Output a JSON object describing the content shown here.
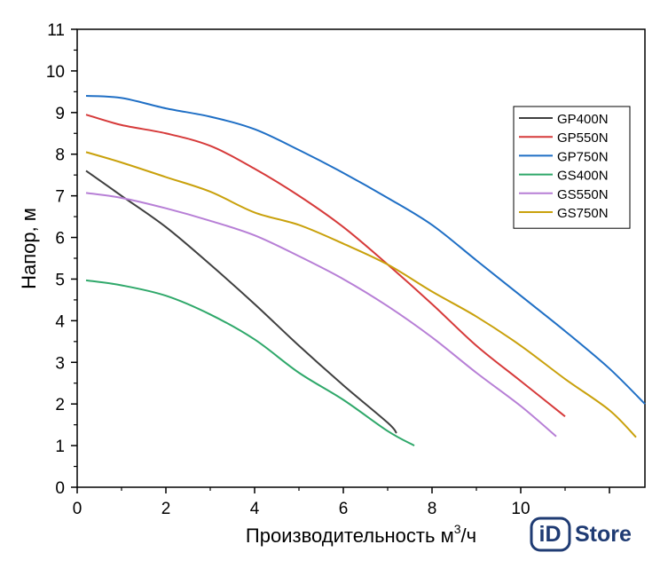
{
  "chart_data": {
    "type": "line",
    "title": "",
    "xlabel": "Производительность м³/ч",
    "xlabel_main": "Производительность м",
    "xlabel_sup": "3",
    "xlabel_tail": "/ч",
    "ylabel": "Напор, м",
    "xlim": [
      0,
      12.8
    ],
    "ylim": [
      0,
      11
    ],
    "xticks": [
      "0",
      "2",
      "4",
      "6",
      "8",
      "10"
    ],
    "yticks": [
      "0",
      "1",
      "2",
      "3",
      "4",
      "5",
      "6",
      "7",
      "8",
      "9",
      "10",
      "11"
    ],
    "grid": false,
    "legend": "top-right",
    "series": [
      {
        "name": "GP400N",
        "color": "#3f3f3f",
        "x": [
          0.2,
          1,
          2,
          3,
          4,
          5,
          6,
          7,
          7.2
        ],
        "y": [
          7.6,
          7.0,
          6.25,
          5.35,
          4.4,
          3.4,
          2.45,
          1.55,
          1.3
        ]
      },
      {
        "name": "GP550N",
        "color": "#d63a3a",
        "x": [
          0.2,
          1,
          2,
          3,
          4,
          5,
          6,
          7,
          8,
          9,
          10,
          11
        ],
        "y": [
          8.95,
          8.7,
          8.5,
          8.2,
          7.65,
          7.0,
          6.25,
          5.35,
          4.4,
          3.4,
          2.55,
          1.7
        ]
      },
      {
        "name": "GP750N",
        "color": "#1f6fc5",
        "x": [
          0.2,
          1,
          2,
          3,
          4,
          5,
          6,
          7,
          8,
          9,
          10,
          11,
          12,
          12.8
        ],
        "y": [
          9.4,
          9.35,
          9.1,
          8.9,
          8.6,
          8.1,
          7.55,
          6.95,
          6.3,
          5.45,
          4.6,
          3.75,
          2.85,
          2.0
        ]
      },
      {
        "name": "GS400N",
        "color": "#2fa86a",
        "x": [
          0.2,
          1,
          2,
          3,
          4,
          5,
          6,
          7,
          7.6
        ],
        "y": [
          4.97,
          4.85,
          4.6,
          4.15,
          3.55,
          2.75,
          2.1,
          1.35,
          1.0
        ]
      },
      {
        "name": "GS550N",
        "color": "#b77fd6",
        "x": [
          0.2,
          1,
          2,
          3,
          4,
          5,
          6,
          7,
          8,
          9,
          10,
          10.8
        ],
        "y": [
          7.07,
          6.95,
          6.7,
          6.4,
          6.05,
          5.55,
          5.0,
          4.35,
          3.6,
          2.75,
          1.95,
          1.22
        ]
      },
      {
        "name": "GS750N",
        "color": "#c9a10c",
        "x": [
          0.2,
          1,
          2,
          3,
          4,
          5,
          6,
          7,
          8,
          9,
          10,
          11,
          12,
          12.6
        ],
        "y": [
          8.05,
          7.8,
          7.45,
          7.1,
          6.6,
          6.3,
          5.85,
          5.35,
          4.7,
          4.1,
          3.4,
          2.6,
          1.85,
          1.2
        ]
      }
    ]
  },
  "logo": {
    "mark": "iD",
    "text": "Store",
    "color": "#1f3b73"
  }
}
